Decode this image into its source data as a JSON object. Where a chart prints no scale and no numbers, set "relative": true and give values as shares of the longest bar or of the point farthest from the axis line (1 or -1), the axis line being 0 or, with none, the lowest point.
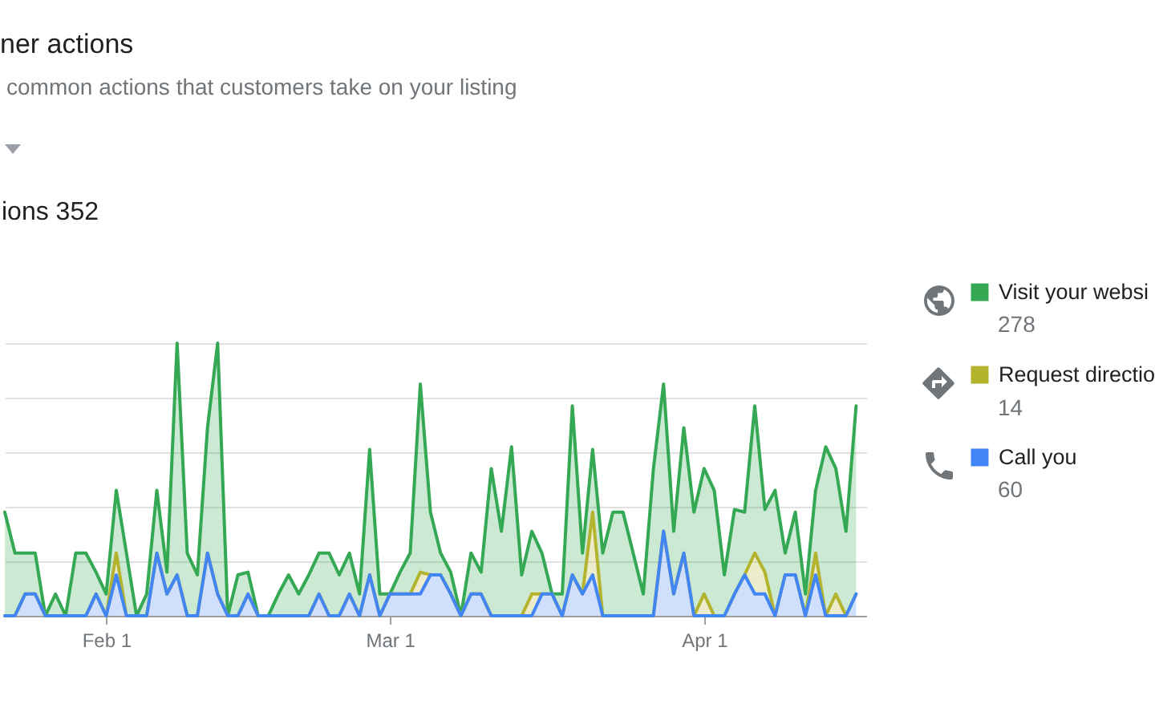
{
  "chart_data": {
    "type": "area",
    "title": "ner actions",
    "subtitle": "common actions that customers take on your listing",
    "annotations": [
      "ions 352",
      "60",
      "14",
      "278"
    ],
    "x": [
      "--01-22",
      "--01-23",
      "--01-24",
      "--01-25",
      "--01-26",
      "--01-27",
      "--01-28",
      "--01-29",
      "--01-30",
      "--01-31",
      "--02-01",
      "--02-02",
      "--02-03",
      "--02-04",
      "--02-05",
      "--02-06",
      "--02-07",
      "--02-08",
      "--02-09",
      "--02-10",
      "--02-11",
      "--02-12",
      "--02-13",
      "--02-14",
      "--02-15",
      "--02-16",
      "--02-17",
      "--02-18",
      "--02-19",
      "--02-20",
      "--02-21",
      "--02-22",
      "--02-23",
      "--02-24",
      "--02-25",
      "--02-26",
      "--02-27",
      "--02-28",
      "--03-01",
      "--03-02",
      "--03-03",
      "--03-04",
      "--03-05",
      "--03-06",
      "--03-07",
      "--03-08",
      "--03-09",
      "--03-10",
      "--03-11",
      "--03-12",
      "--03-13",
      "--03-14",
      "--03-15",
      "--03-16",
      "--03-17",
      "--03-18",
      "--03-19",
      "--03-20",
      "--03-21",
      "--03-22",
      "--03-23",
      "--03-24",
      "--03-25",
      "--03-26",
      "--03-27",
      "--03-28",
      "--03-29",
      "--03-30",
      "--03-31",
      "--04-01",
      "--04-02",
      "--04-03",
      "--04-04",
      "--04-05",
      "--04-06",
      "--04-07",
      "--04-08",
      "--04-09",
      "--04-10",
      "--04-11",
      "--04-12",
      "--04-13",
      "--04-14",
      "--04-15",
      "--04-16"
    ],
    "series": [
      {
        "name": "Call you",
        "color": "#4285f4",
        "values": [
          0,
          0,
          0.08,
          0.08,
          0,
          0,
          0,
          0,
          0,
          0.08,
          0,
          0.15,
          0,
          0,
          0,
          0.23,
          0.08,
          0.15,
          0,
          0,
          0.23,
          0.08,
          0,
          0,
          0.08,
          0,
          0,
          0,
          0,
          0,
          0,
          0.08,
          0,
          0,
          0.08,
          0,
          0.15,
          0,
          0.08,
          0.08,
          0.08,
          0.08,
          0.15,
          0.15,
          0.08,
          0,
          0.08,
          0.08,
          0,
          0,
          0,
          0,
          0,
          0.08,
          0.08,
          0,
          0.15,
          0.08,
          0.15,
          0,
          0,
          0,
          0,
          0,
          0,
          0.31,
          0.08,
          0.23,
          0,
          0,
          0,
          0,
          0.08,
          0.15,
          0.08,
          0.08,
          0,
          0.15,
          0.15,
          0,
          0.15,
          0,
          0,
          0,
          0.08
        ]
      },
      {
        "name": "Request directio",
        "color": "#b3b32d",
        "values": [
          0,
          0,
          0,
          0,
          0,
          0,
          0,
          0,
          0,
          0,
          0,
          0.08,
          0,
          0,
          0,
          0,
          0,
          0,
          0,
          0,
          0,
          0,
          0,
          0,
          0,
          0,
          0,
          0,
          0,
          0,
          0,
          0,
          0,
          0,
          0,
          0,
          0,
          0,
          0,
          0,
          0,
          0.08,
          0,
          0,
          0,
          0,
          0,
          0,
          0,
          0,
          0,
          0,
          0.08,
          0,
          0,
          0,
          0,
          0,
          0.23,
          0,
          0,
          0,
          0,
          0,
          0,
          0,
          0,
          0,
          0,
          0.08,
          0,
          0,
          0,
          0,
          0.15,
          0.08,
          0,
          0,
          0,
          0,
          0.08,
          0,
          0.08,
          0,
          0
        ]
      },
      {
        "name": "Visit your websi",
        "color": "#34a853",
        "values": [
          0.38,
          0.23,
          0.15,
          0.15,
          0,
          0.08,
          0,
          0.23,
          0.23,
          0.08,
          0.08,
          0.23,
          0.23,
          0,
          0.08,
          0.23,
          0.08,
          0.85,
          0.23,
          0.15,
          0.46,
          0.92,
          0,
          0.15,
          0.08,
          0,
          0,
          0.08,
          0.15,
          0.08,
          0.15,
          0.15,
          0.23,
          0.15,
          0.15,
          0.08,
          0.46,
          0.08,
          0,
          0.08,
          0.15,
          0.69,
          0.23,
          0.08,
          0.08,
          0,
          0.15,
          0.08,
          0.54,
          0.31,
          0.62,
          0.15,
          0.23,
          0.15,
          0,
          0.08,
          0.62,
          0.15,
          0.23,
          0.23,
          0.38,
          0.38,
          0.23,
          0.08,
          0.54,
          0.54,
          0.23,
          0.46,
          0.38,
          0.46,
          0.46,
          0.15,
          0.31,
          0.23,
          0.54,
          0.23,
          0.46,
          0.08,
          0.23,
          0.08,
          0.23,
          0.62,
          0.46,
          0.31,
          0.69
        ]
      }
    ],
    "stacked": true,
    "relative": true,
    "xlim": [
      "--01-22",
      "--04-17"
    ],
    "xticks": [
      {
        "value": "--02-01",
        "label": "Feb 1"
      },
      {
        "value": "--03-01",
        "label": "Mar 1"
      },
      {
        "value": "--04-01",
        "label": "Apr 1"
      }
    ],
    "grid": "y",
    "legend": "right"
  }
}
